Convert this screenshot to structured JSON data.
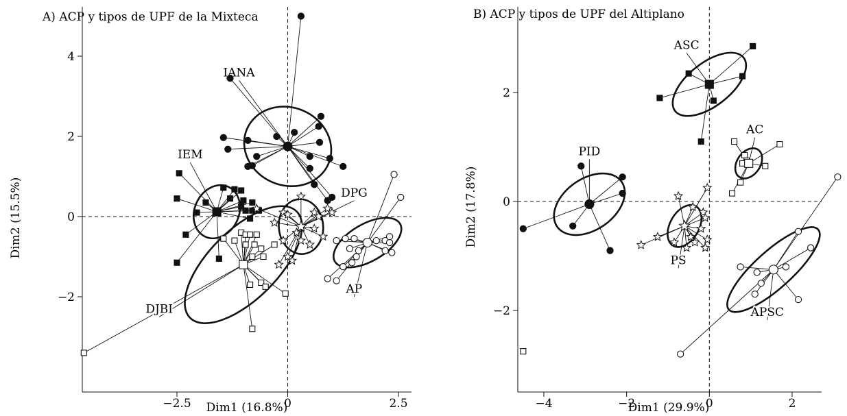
{
  "chart_data": [
    {
      "type": "scatter",
      "title": "A) ACP y tipos de UPF de la Mixteca",
      "xlabel": "Dim1 (16.8%)",
      "ylabel": "Dim2 (15.5%)",
      "xlim": [
        -4.7,
        3.1
      ],
      "ylim": [
        -3.7,
        5.1
      ],
      "xticks": [
        {
          "v": -2.5,
          "t": "−2.5"
        },
        {
          "v": 0,
          "t": "0"
        },
        {
          "v": 2.5,
          "t": "2.5"
        }
      ],
      "yticks": [
        {
          "v": -2,
          "t": "−2"
        },
        {
          "v": 0,
          "t": "0"
        },
        {
          "v": 2,
          "t": "2"
        },
        {
          "v": 4,
          "t": "4"
        }
      ],
      "groups": [
        {
          "label": "IANA",
          "marker": "circle-filled",
          "centroid": [
            0,
            1.75
          ],
          "label_pos": [
            -1.1,
            3.5
          ],
          "ellipse": {
            "rx": 0.88,
            "ry": 1.0,
            "angle": 67
          },
          "points": [
            [
              0.3,
              5.0
            ],
            [
              -1.3,
              3.45
            ],
            [
              -0.25,
              2.0
            ],
            [
              -1.45,
              1.97
            ],
            [
              -1.35,
              1.68
            ],
            [
              -0.9,
              1.9
            ],
            [
              -0.7,
              1.5
            ],
            [
              -0.8,
              1.27
            ],
            [
              -0.9,
              1.25
            ],
            [
              0.15,
              2.1
            ],
            [
              0.75,
              2.5
            ],
            [
              0.7,
              2.25
            ],
            [
              0.72,
              1.85
            ],
            [
              0.5,
              1.5
            ],
            [
              0.5,
              1.2
            ],
            [
              0.6,
              0.8
            ],
            [
              1.0,
              0.48
            ],
            [
              1.25,
              1.25
            ],
            [
              0.95,
              1.45
            ],
            [
              0.9,
              0.4
            ]
          ]
        },
        {
          "label": "IEM",
          "marker": "square-filled",
          "centroid": [
            -1.6,
            0.12
          ],
          "label_pos": [
            -2.2,
            1.45
          ],
          "ellipse": {
            "rx": 0.62,
            "ry": 0.5,
            "angle": 65
          },
          "points": [
            [
              -2.45,
              1.08
            ],
            [
              -2.5,
              0.45
            ],
            [
              -2.05,
              0.1
            ],
            [
              -2.3,
              -0.45
            ],
            [
              -1.45,
              0.72
            ],
            [
              -1.2,
              0.68
            ],
            [
              -1.05,
              0.65
            ],
            [
              -1.3,
              0.45
            ],
            [
              -1.0,
              0.4
            ],
            [
              -1.05,
              0.25
            ],
            [
              -0.95,
              0.15
            ],
            [
              -0.8,
              0.35
            ],
            [
              -0.8,
              0.15
            ],
            [
              -0.65,
              0.15
            ],
            [
              -0.85,
              -0.05
            ],
            [
              -1.85,
              0.35
            ],
            [
              -2.5,
              -1.15
            ],
            [
              -1.55,
              -1.05
            ]
          ]
        },
        {
          "label": "DJBI",
          "marker": "square-open",
          "centroid": [
            -1.0,
            -1.2
          ],
          "label_pos": [
            -2.9,
            -2.4
          ],
          "ellipse": {
            "rx": 1.7,
            "ry": 0.78,
            "angle": 45
          },
          "points": [
            [
              -4.6,
              -3.4
            ],
            [
              -1.45,
              -0.55
            ],
            [
              -1.2,
              -0.6
            ],
            [
              -1.05,
              -0.4
            ],
            [
              -0.95,
              -0.45
            ],
            [
              -0.85,
              -0.45
            ],
            [
              -0.7,
              -0.45
            ],
            [
              -0.95,
              -0.7
            ],
            [
              -0.75,
              -0.7
            ],
            [
              -0.8,
              -1.0
            ],
            [
              -0.6,
              -0.8
            ],
            [
              -0.55,
              -1.0
            ],
            [
              -0.3,
              -0.7
            ],
            [
              -0.6,
              -1.65
            ],
            [
              -0.85,
              -1.7
            ],
            [
              -0.5,
              -1.75
            ],
            [
              -0.05,
              -1.92
            ],
            [
              -0.8,
              -2.8
            ]
          ]
        },
        {
          "label": "DPG",
          "marker": "star-open",
          "centroid": [
            0.3,
            -0.25
          ],
          "label_pos": [
            1.5,
            0.5
          ],
          "ellipse": {
            "rx": 0.62,
            "ry": 0.5,
            "angle": 95
          },
          "points": [
            [
              -0.7,
              0.2
            ],
            [
              -0.3,
              -0.15
            ],
            [
              -0.1,
              0.1
            ],
            [
              0.0,
              0.05
            ],
            [
              0.3,
              0.5
            ],
            [
              0.6,
              0.1
            ],
            [
              0.7,
              0.0
            ],
            [
              0.9,
              0.2
            ],
            [
              1.0,
              0.1
            ],
            [
              0.6,
              -0.3
            ],
            [
              0.2,
              -0.4
            ],
            [
              -0.1,
              -0.6
            ],
            [
              0.0,
              -1.0
            ],
            [
              0.1,
              -1.1
            ],
            [
              0.3,
              -0.6
            ],
            [
              0.8,
              -0.5
            ],
            [
              0.5,
              -0.7
            ],
            [
              -0.2,
              -1.2
            ]
          ]
        },
        {
          "label": "AP",
          "marker": "circle-open",
          "centroid": [
            1.8,
            -0.65
          ],
          "label_pos": [
            1.5,
            -1.9
          ],
          "ellipse": {
            "rx": 0.85,
            "ry": 0.42,
            "angle": 30
          },
          "points": [
            [
              2.4,
              1.05
            ],
            [
              2.55,
              0.48
            ],
            [
              1.1,
              -0.6
            ],
            [
              1.3,
              -0.55
            ],
            [
              1.5,
              -0.55
            ],
            [
              1.4,
              -0.8
            ],
            [
              1.55,
              -1.0
            ],
            [
              1.25,
              -1.25
            ],
            [
              1.1,
              -1.6
            ],
            [
              0.9,
              -1.55
            ],
            [
              2.0,
              -0.6
            ],
            [
              2.2,
              -0.6
            ],
            [
              2.3,
              -0.65
            ],
            [
              2.2,
              -0.85
            ],
            [
              2.35,
              -0.9
            ],
            [
              2.3,
              -0.5
            ],
            [
              1.6,
              -0.85
            ],
            [
              1.45,
              -1.15
            ]
          ]
        }
      ]
    },
    {
      "type": "scatter",
      "title": "B) ACP y tipos de UPF del Altiplano",
      "xlabel": "Dim1 (29.9%)",
      "ylabel": "Dim2 (17.8%)",
      "xlim": [
        -4.8,
        3.6
      ],
      "ylim": [
        -3.35,
        3.35
      ],
      "xticks": [
        {
          "v": -4,
          "t": "−4"
        },
        {
          "v": -2,
          "t": "−2"
        },
        {
          "v": 0,
          "t": "0"
        },
        {
          "v": 2,
          "t": "2"
        }
      ],
      "yticks": [
        {
          "v": -2,
          "t": "−2"
        },
        {
          "v": 0,
          "t": "0"
        },
        {
          "v": 2,
          "t": "2"
        }
      ],
      "groups": [
        {
          "label": "ASC",
          "marker": "square-filled",
          "centroid": [
            0.0,
            2.15
          ],
          "label_pos": [
            -0.55,
            2.8
          ],
          "ellipse": {
            "rx": 1.05,
            "ry": 0.52,
            "angle": 38
          },
          "points": [
            [
              1.05,
              2.85
            ],
            [
              -0.5,
              2.35
            ],
            [
              0.8,
              2.3
            ],
            [
              -1.2,
              1.9
            ],
            [
              0.1,
              1.85
            ],
            [
              -0.2,
              1.1
            ]
          ]
        },
        {
          "label": "AC",
          "marker": "square-open",
          "centroid": [
            0.95,
            0.7
          ],
          "label_pos": [
            1.1,
            1.25
          ],
          "ellipse": {
            "rx": 0.4,
            "ry": 0.28,
            "angle": 55
          },
          "points": [
            [
              0.6,
              1.1
            ],
            [
              1.7,
              1.05
            ],
            [
              0.85,
              0.85
            ],
            [
              0.9,
              0.75
            ],
            [
              0.8,
              0.7
            ],
            [
              1.35,
              0.65
            ],
            [
              0.75,
              0.35
            ],
            [
              0.55,
              0.15
            ]
          ]
        },
        {
          "label": "PID",
          "marker": "circle-filled",
          "centroid": [
            -2.9,
            -0.05
          ],
          "label_pos": [
            -2.9,
            0.85
          ],
          "ellipse": {
            "rx": 0.95,
            "ry": 0.62,
            "angle": 35
          },
          "points": [
            [
              -3.1,
              0.65
            ],
            [
              -2.1,
              0.45
            ],
            [
              -2.1,
              0.15
            ],
            [
              -3.3,
              -0.45
            ],
            [
              -4.5,
              -0.5
            ],
            [
              -2.4,
              -0.9
            ]
          ]
        },
        {
          "label": "PS",
          "marker": "star-open",
          "centroid": [
            -0.6,
            -0.45
          ],
          "label_pos": [
            -0.75,
            -1.15
          ],
          "ellipse": {
            "rx": 0.55,
            "ry": 0.35,
            "angle": 60
          },
          "points": [
            [
              -0.75,
              0.1
            ],
            [
              -0.05,
              0.25
            ],
            [
              -0.4,
              -0.1
            ],
            [
              -0.15,
              -0.2
            ],
            [
              -0.1,
              -0.3
            ],
            [
              -0.2,
              -0.5
            ],
            [
              -0.45,
              -0.65
            ],
            [
              -0.35,
              -0.75
            ],
            [
              -0.85,
              -0.75
            ],
            [
              -0.55,
              -0.85
            ],
            [
              -1.25,
              -0.65
            ],
            [
              -1.65,
              -0.8
            ],
            [
              -0.05,
              -0.7
            ],
            [
              -0.1,
              -0.85
            ]
          ]
        },
        {
          "label": "APSC",
          "marker": "circle-open",
          "centroid": [
            1.55,
            -1.25
          ],
          "label_pos": [
            1.4,
            -2.1
          ],
          "ellipse": {
            "rx": 1.45,
            "ry": 0.45,
            "angle": 42
          },
          "points": [
            [
              3.1,
              0.45
            ],
            [
              2.15,
              -0.55
            ],
            [
              2.45,
              -0.85
            ],
            [
              0.75,
              -1.2
            ],
            [
              1.15,
              -1.3
            ],
            [
              1.25,
              -1.5
            ],
            [
              1.85,
              -1.2
            ],
            [
              1.1,
              -1.7
            ],
            [
              2.15,
              -1.8
            ],
            [
              -0.7,
              -2.8
            ]
          ]
        }
      ],
      "outliers": [
        {
          "marker": "square-open",
          "x": -4.5,
          "y": -2.75
        }
      ]
    }
  ]
}
